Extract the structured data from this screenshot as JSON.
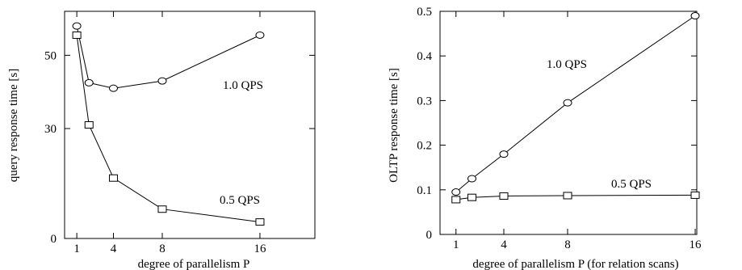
{
  "chart_data": [
    {
      "type": "line",
      "xlabel": "degree of parallelism P",
      "ylabel": "query response time [s]",
      "xlim": [
        0,
        20.5
      ],
      "ylim": [
        0,
        62
      ],
      "x_ticks": [
        1,
        4,
        8,
        16
      ],
      "y_ticks": [
        0,
        30,
        50
      ],
      "grid": false,
      "series": [
        {
          "name": "1.0 QPS",
          "marker": "circle",
          "x": [
            1,
            2,
            4,
            8,
            16
          ],
          "y": [
            58,
            42.5,
            41,
            43,
            55.5
          ]
        },
        {
          "name": "0.5 QPS",
          "marker": "square",
          "x": [
            1,
            2,
            4,
            8,
            16
          ],
          "y": [
            55.5,
            31,
            16.5,
            8,
            4.5
          ]
        }
      ]
    },
    {
      "type": "line",
      "xlabel": "degree of parallelism P (for relation scans)",
      "ylabel": "OLTP response time [s]",
      "xlim": [
        0,
        16.1
      ],
      "ylim": [
        0,
        0.5
      ],
      "x_ticks": [
        1,
        4,
        8,
        16
      ],
      "y_ticks": [
        0,
        0.1,
        0.2,
        0.3,
        0.4,
        0.5
      ],
      "grid": false,
      "series": [
        {
          "name": "1.0 QPS",
          "marker": "circle",
          "x": [
            1,
            2,
            4,
            8,
            16
          ],
          "y": [
            0.095,
            0.125,
            0.18,
            0.295,
            0.49
          ]
        },
        {
          "name": "0.5 QPS",
          "marker": "square",
          "x": [
            1,
            2,
            4,
            8,
            16
          ],
          "y": [
            0.078,
            0.083,
            0.086,
            0.087,
            0.088
          ]
        }
      ]
    }
  ]
}
